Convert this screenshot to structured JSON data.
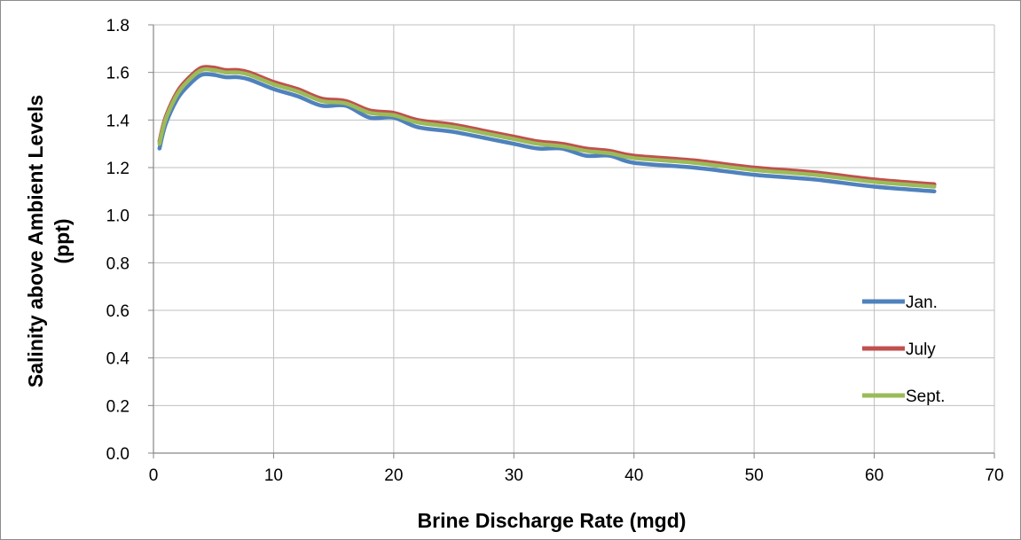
{
  "chart_data": {
    "type": "line",
    "xlabel": "Brine Discharge Rate (mgd)",
    "ylabel_lines": [
      "Salinity above Ambient Levels",
      "(ppt)"
    ],
    "xlim": [
      0,
      70
    ],
    "ylim": [
      0,
      1.8
    ],
    "x_ticks": [
      "0",
      "10",
      "20",
      "30",
      "40",
      "50",
      "60",
      "70"
    ],
    "y_ticks": [
      "0.0",
      "0.2",
      "0.4",
      "0.6",
      "0.8",
      "1.0",
      "1.2",
      "1.4",
      "1.6",
      "1.8"
    ],
    "grid": true,
    "legend_position": "right",
    "series": [
      {
        "name": "Jan.",
        "color": "#4f81bd",
        "points": [
          [
            0.5,
            1.28
          ],
          [
            1,
            1.38
          ],
          [
            2,
            1.49
          ],
          [
            3,
            1.55
          ],
          [
            4,
            1.59
          ],
          [
            5,
            1.59
          ],
          [
            6,
            1.58
          ],
          [
            7,
            1.58
          ],
          [
            8,
            1.57
          ],
          [
            10,
            1.53
          ],
          [
            12,
            1.5
          ],
          [
            14,
            1.46
          ],
          [
            16,
            1.46
          ],
          [
            18,
            1.41
          ],
          [
            20,
            1.41
          ],
          [
            22,
            1.37
          ],
          [
            25,
            1.35
          ],
          [
            28,
            1.32
          ],
          [
            30,
            1.3
          ],
          [
            32,
            1.28
          ],
          [
            34,
            1.28
          ],
          [
            36,
            1.25
          ],
          [
            38,
            1.25
          ],
          [
            40,
            1.22
          ],
          [
            45,
            1.2
          ],
          [
            50,
            1.17
          ],
          [
            55,
            1.15
          ],
          [
            60,
            1.12
          ],
          [
            65,
            1.1
          ]
        ]
      },
      {
        "name": "July",
        "color": "#c0504d",
        "points": [
          [
            0.5,
            1.31
          ],
          [
            1,
            1.41
          ],
          [
            2,
            1.52
          ],
          [
            3,
            1.58
          ],
          [
            4,
            1.62
          ],
          [
            5,
            1.62
          ],
          [
            6,
            1.61
          ],
          [
            7,
            1.61
          ],
          [
            8,
            1.6
          ],
          [
            10,
            1.56
          ],
          [
            12,
            1.53
          ],
          [
            14,
            1.49
          ],
          [
            16,
            1.48
          ],
          [
            18,
            1.44
          ],
          [
            20,
            1.43
          ],
          [
            22,
            1.4
          ],
          [
            25,
            1.38
          ],
          [
            28,
            1.35
          ],
          [
            30,
            1.33
          ],
          [
            32,
            1.31
          ],
          [
            34,
            1.3
          ],
          [
            36,
            1.28
          ],
          [
            38,
            1.27
          ],
          [
            40,
            1.25
          ],
          [
            45,
            1.23
          ],
          [
            50,
            1.2
          ],
          [
            55,
            1.18
          ],
          [
            60,
            1.15
          ],
          [
            65,
            1.13
          ]
        ]
      },
      {
        "name": "Sept.",
        "color": "#9bbb59",
        "points": [
          [
            0.5,
            1.3
          ],
          [
            1,
            1.4
          ],
          [
            2,
            1.51
          ],
          [
            3,
            1.57
          ],
          [
            4,
            1.61
          ],
          [
            5,
            1.61
          ],
          [
            6,
            1.6
          ],
          [
            7,
            1.6
          ],
          [
            8,
            1.59
          ],
          [
            10,
            1.55
          ],
          [
            12,
            1.52
          ],
          [
            14,
            1.48
          ],
          [
            16,
            1.47
          ],
          [
            18,
            1.43
          ],
          [
            20,
            1.42
          ],
          [
            22,
            1.39
          ],
          [
            25,
            1.37
          ],
          [
            28,
            1.34
          ],
          [
            30,
            1.32
          ],
          [
            32,
            1.3
          ],
          [
            34,
            1.29
          ],
          [
            36,
            1.27
          ],
          [
            38,
            1.26
          ],
          [
            40,
            1.24
          ],
          [
            45,
            1.22
          ],
          [
            50,
            1.19
          ],
          [
            55,
            1.17
          ],
          [
            60,
            1.14
          ],
          [
            65,
            1.12
          ]
        ]
      }
    ]
  }
}
